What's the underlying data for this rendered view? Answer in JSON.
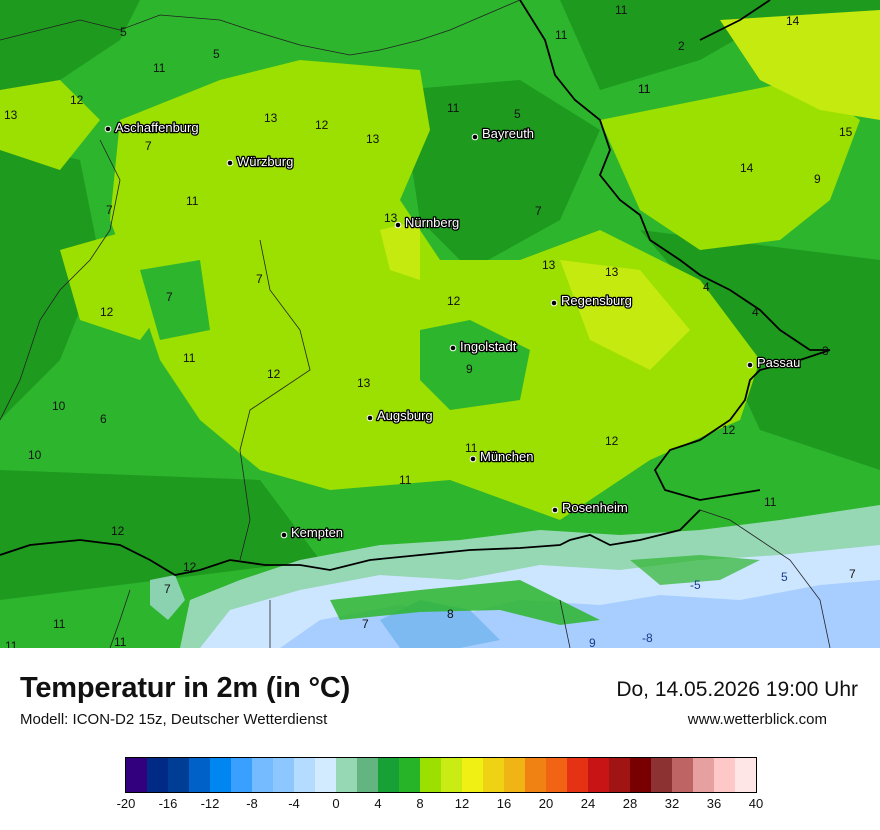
{
  "map": {
    "cities": [
      {
        "name": "Aschaffenburg"
      },
      {
        "name": "Würzburg"
      },
      {
        "name": "Bayreuth"
      },
      {
        "name": "Nürnberg"
      },
      {
        "name": "Regensburg"
      },
      {
        "name": "Ingolstadt"
      },
      {
        "name": "Passau"
      },
      {
        "name": "Augsburg"
      },
      {
        "name": "München"
      },
      {
        "name": "Rosenheim"
      },
      {
        "name": "Kempten"
      }
    ],
    "isotherm_labels": [
      "5",
      "5",
      "11",
      "11",
      "11",
      "11",
      "14",
      "12",
      "13",
      "12",
      "13",
      "11",
      "5",
      "2",
      "11",
      "15",
      "7",
      "13",
      "14",
      "9",
      "7",
      "11",
      "13",
      "7",
      "13",
      "13",
      "4",
      "7",
      "7",
      "12",
      "12",
      "4",
      "11",
      "12",
      "3",
      "9",
      "13",
      "10",
      "6",
      "12",
      "11",
      "10",
      "12",
      "11",
      "12",
      "12",
      "7",
      "11",
      "5",
      "7",
      "-5",
      "8",
      "7",
      "9",
      "-8",
      "11",
      "11",
      "11"
    ],
    "colors": {
      "green_dark": "#1e9a1e",
      "green": "#2db52d",
      "yellow_green": "#9be000",
      "light_green": "#c4ea10",
      "mint": "#96d8b4",
      "light_blue": "#cde6ff",
      "blue": "#a8ceff",
      "border": "#000000"
    }
  },
  "footer": {
    "title": "Temperatur in 2m (in °C)",
    "model": "Modell: ICON-D2 15z, Deutscher Wetterdienst",
    "datetime": "Do, 14.05.2026 19:00 Uhr",
    "website": "www.wetterblick.com"
  },
  "legend": {
    "colors": [
      "#32007f",
      "#002a86",
      "#003e96",
      "#0062c8",
      "#0086f0",
      "#3aa0ff",
      "#74bcff",
      "#8cc8ff",
      "#b4dcff",
      "#d2ebff",
      "#96d8b4",
      "#64b482",
      "#16a036",
      "#28b428",
      "#9be000",
      "#c8ec14",
      "#f0f014",
      "#f0d214",
      "#f0b414",
      "#f08214",
      "#f06414",
      "#e63214",
      "#c81414",
      "#a01414",
      "#780000",
      "#8c3232",
      "#be6464",
      "#e6a0a0",
      "#ffc8c8",
      "#ffe6e6"
    ],
    "ticks": [
      "-20",
      "-16",
      "-12",
      "-8",
      "-4",
      "0",
      "4",
      "8",
      "12",
      "16",
      "20",
      "24",
      "28",
      "32",
      "36",
      "40"
    ]
  }
}
